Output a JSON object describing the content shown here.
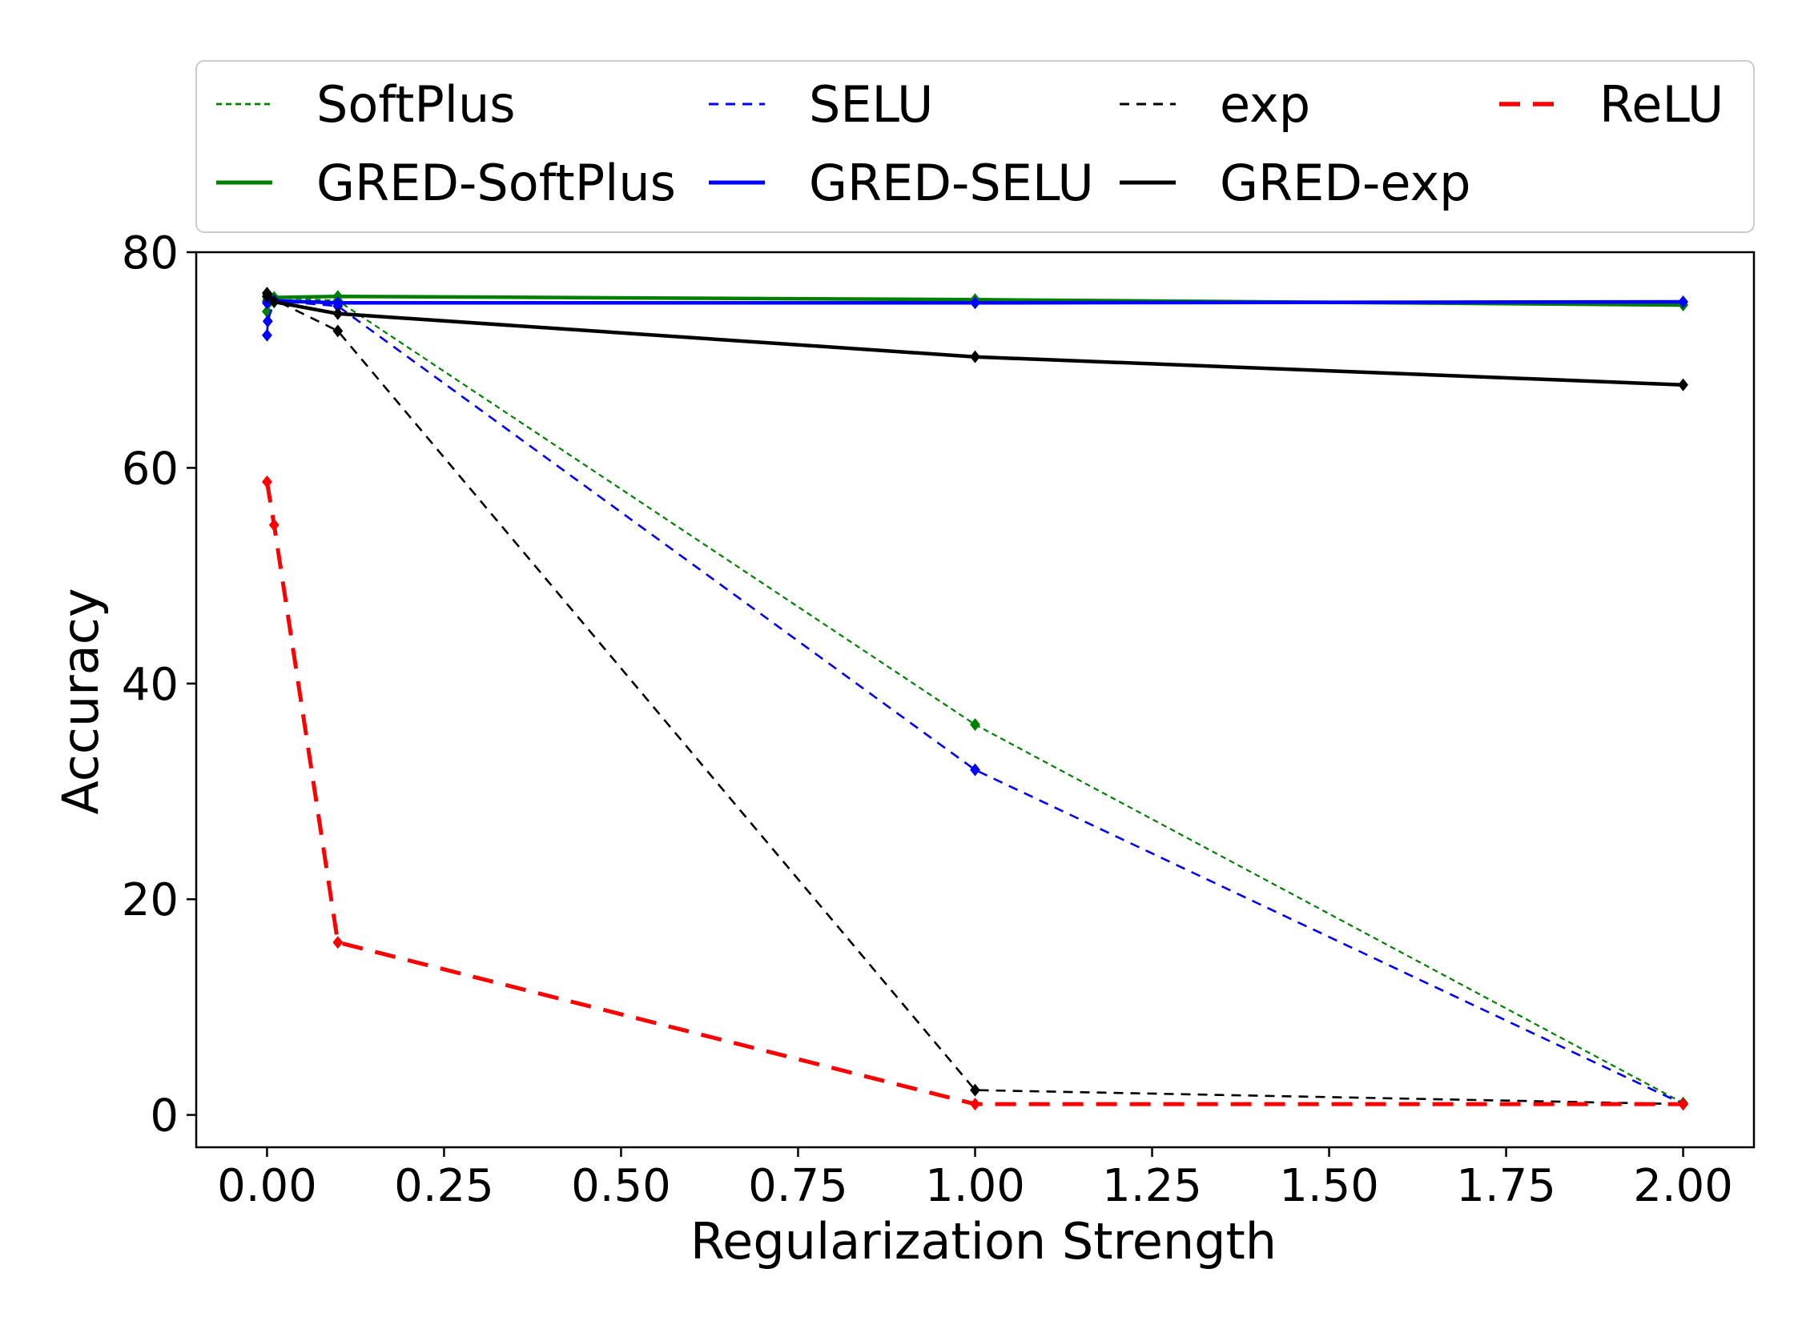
{
  "chart_data": {
    "type": "line",
    "title": "",
    "xlabel": "Regularization Strength",
    "ylabel": "Accuracy",
    "xlim": [
      -0.1,
      2.1
    ],
    "ylim": [
      -3,
      80
    ],
    "xticks": [
      0.0,
      0.25,
      0.5,
      0.75,
      1.0,
      1.25,
      1.5,
      1.75,
      2.0
    ],
    "xtick_labels": [
      "0.00",
      "0.25",
      "0.50",
      "0.75",
      "1.00",
      "1.25",
      "1.50",
      "1.75",
      "2.00"
    ],
    "yticks": [
      0,
      20,
      40,
      60,
      80
    ],
    "ytick_labels": [
      "0",
      "20",
      "40",
      "60",
      "80"
    ],
    "grid": false,
    "legend_position": "top, above plot, 4 columns",
    "series": [
      {
        "name": "SoftPlus",
        "color": "#008000",
        "style": "dotted",
        "x": [
          0.0,
          0.001,
          0.01,
          0.1,
          1.0,
          2.0
        ],
        "y": [
          74.5,
          75.2,
          75.8,
          75.5,
          36.2,
          1.1
        ]
      },
      {
        "name": "SELU",
        "color": "#0000ff",
        "style": "dashed-thin",
        "x": [
          0.0,
          0.001,
          0.01,
          0.1,
          1.0,
          2.0
        ],
        "y": [
          72.3,
          73.6,
          75.5,
          75.0,
          32.0,
          1.0
        ]
      },
      {
        "name": "exp",
        "color": "#000000",
        "style": "dashed-thin",
        "x": [
          0.0,
          0.001,
          0.01,
          0.1,
          1.0,
          2.0
        ],
        "y": [
          76.2,
          76.0,
          75.6,
          72.7,
          2.3,
          1.0
        ]
      },
      {
        "name": "ReLU",
        "color": "#ff0000",
        "style": "dashed-thick",
        "x": [
          0.0,
          0.01,
          0.1,
          1.0,
          2.0
        ],
        "y": [
          58.7,
          54.7,
          16.0,
          1.0,
          1.0
        ]
      },
      {
        "name": "GRED-SoftPlus",
        "color": "#008000",
        "style": "solid",
        "x": [
          0.0,
          0.001,
          0.01,
          0.1,
          1.0,
          2.0
        ],
        "y": [
          75.5,
          75.7,
          75.8,
          75.9,
          75.6,
          75.1
        ]
      },
      {
        "name": "GRED-SELU",
        "color": "#0000ff",
        "style": "solid",
        "x": [
          0.0,
          0.001,
          0.01,
          0.1,
          1.0,
          2.0
        ],
        "y": [
          75.3,
          75.4,
          75.5,
          75.3,
          75.3,
          75.4
        ]
      },
      {
        "name": "GRED-exp",
        "color": "#000000",
        "style": "solid",
        "x": [
          0.0,
          0.001,
          0.01,
          0.1,
          1.0,
          2.0
        ],
        "y": [
          75.9,
          76.1,
          75.4,
          74.3,
          70.3,
          67.7
        ]
      }
    ],
    "legend_order": [
      "SoftPlus",
      "SELU",
      "exp",
      "ReLU",
      "GRED-SoftPlus",
      "GRED-SELU",
      "GRED-exp"
    ]
  }
}
